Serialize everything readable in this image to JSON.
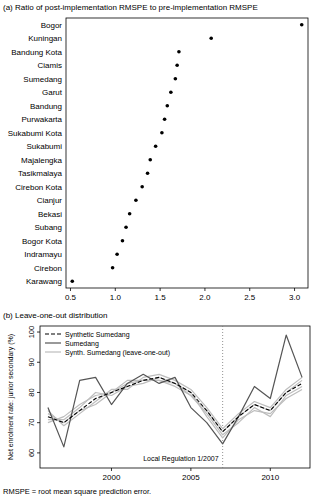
{
  "chart_data": [
    {
      "type": "dot",
      "title": "(a) Ratio of post-implementation RMSPE to pre-implementation RMSPE",
      "orientation": "horizontal",
      "categories": [
        "Bogor",
        "Kuningan",
        "Bandung Kota",
        "Ciamis",
        "Sumedang",
        "Garut",
        "Bandung",
        "Purwakarta",
        "Sukabumi Kota",
        "Sukabumi",
        "Majalengka",
        "Tasikmalaya",
        "Cirebon Kota",
        "Cianjur",
        "Bekasi",
        "Subang",
        "Bogor Kota",
        "Indramayu",
        "Cirebon",
        "Karawang"
      ],
      "values": [
        3.08,
        2.07,
        1.71,
        1.69,
        1.67,
        1.62,
        1.58,
        1.55,
        1.52,
        1.45,
        1.39,
        1.36,
        1.3,
        1.23,
        1.16,
        1.12,
        1.08,
        1.02,
        0.97,
        0.52
      ],
      "color": "#000000",
      "marker": "circle",
      "xlim": [
        0.45,
        3.15
      ],
      "xticks": [
        0.5,
        {
          "value": 1,
          "label": "1.0"
        },
        1.5,
        {
          "value": 2,
          "label": "2.0"
        },
        2.5,
        {
          "value": 3,
          "label": "3.0"
        }
      ],
      "grid": false
    },
    {
      "type": "line",
      "title": "(b) Leave-one-out distribution",
      "y_label": "Net enrolment rate: junior secondary (%)",
      "x": [
        1996,
        1997,
        1998,
        1999,
        2000,
        2001,
        2002,
        2003,
        2004,
        2005,
        2006,
        2007,
        2008,
        2009,
        2010,
        2011,
        2012
      ],
      "series": [
        {
          "name": "Synth. Sumedang (leave-one-out)",
          "color": "#bdbdbd",
          "line_style": "solid",
          "values": [
            70,
            72,
            76,
            79,
            80,
            83,
            84,
            84,
            82,
            79,
            73,
            66,
            70,
            75,
            72,
            79,
            82
          ]
        },
        {
          "name": "Synth. Sumedang (leave-one-out)",
          "color": "#bdbdbd",
          "line_style": "solid",
          "values": [
            74,
            69,
            73,
            77,
            81,
            81,
            85,
            86,
            84,
            81,
            75,
            68,
            73,
            77,
            75,
            81,
            85
          ]
        },
        {
          "name": "Synth. Sumedang (leave-one-out)",
          "color": "#bdbdbd",
          "line_style": "solid",
          "values": [
            71,
            71,
            75,
            80,
            79,
            82,
            83,
            85,
            83,
            80,
            72,
            65,
            71,
            74,
            73,
            78,
            81
          ]
        },
        {
          "name": "Synth. Sumedang (leave-one-out)",
          "color": "#bdbdbd",
          "line_style": "solid",
          "values": [
            73,
            70,
            74,
            76,
            80,
            84,
            84,
            84,
            83,
            79,
            74,
            67,
            72,
            76,
            74,
            80,
            84
          ]
        },
        {
          "name": "Sumedang",
          "color": "#555555",
          "line_style": "solid",
          "values": [
            75,
            62,
            84,
            85,
            76,
            83,
            86,
            83,
            85,
            75,
            70,
            63,
            72,
            82,
            78,
            99,
            85
          ]
        },
        {
          "name": "Synthetic Sumedang",
          "color": "#000000",
          "line_style": "dashed",
          "values": [
            72,
            70,
            74,
            78,
            80,
            82,
            84,
            85,
            83,
            80,
            74,
            67,
            72,
            76,
            74,
            80,
            83
          ]
        }
      ],
      "xlim": [
        1995.5,
        2012.5
      ],
      "xticks": [
        2000,
        2005,
        2010
      ],
      "ylim": [
        55,
        102
      ],
      "yticks": [
        60,
        70,
        80,
        90,
        100
      ],
      "legend": "top-left",
      "grid": false,
      "annotation": {
        "text": "Local Regulation 1/2007",
        "x": 2007
      }
    }
  ],
  "footnote": "RMSPE = root mean square prediction error."
}
